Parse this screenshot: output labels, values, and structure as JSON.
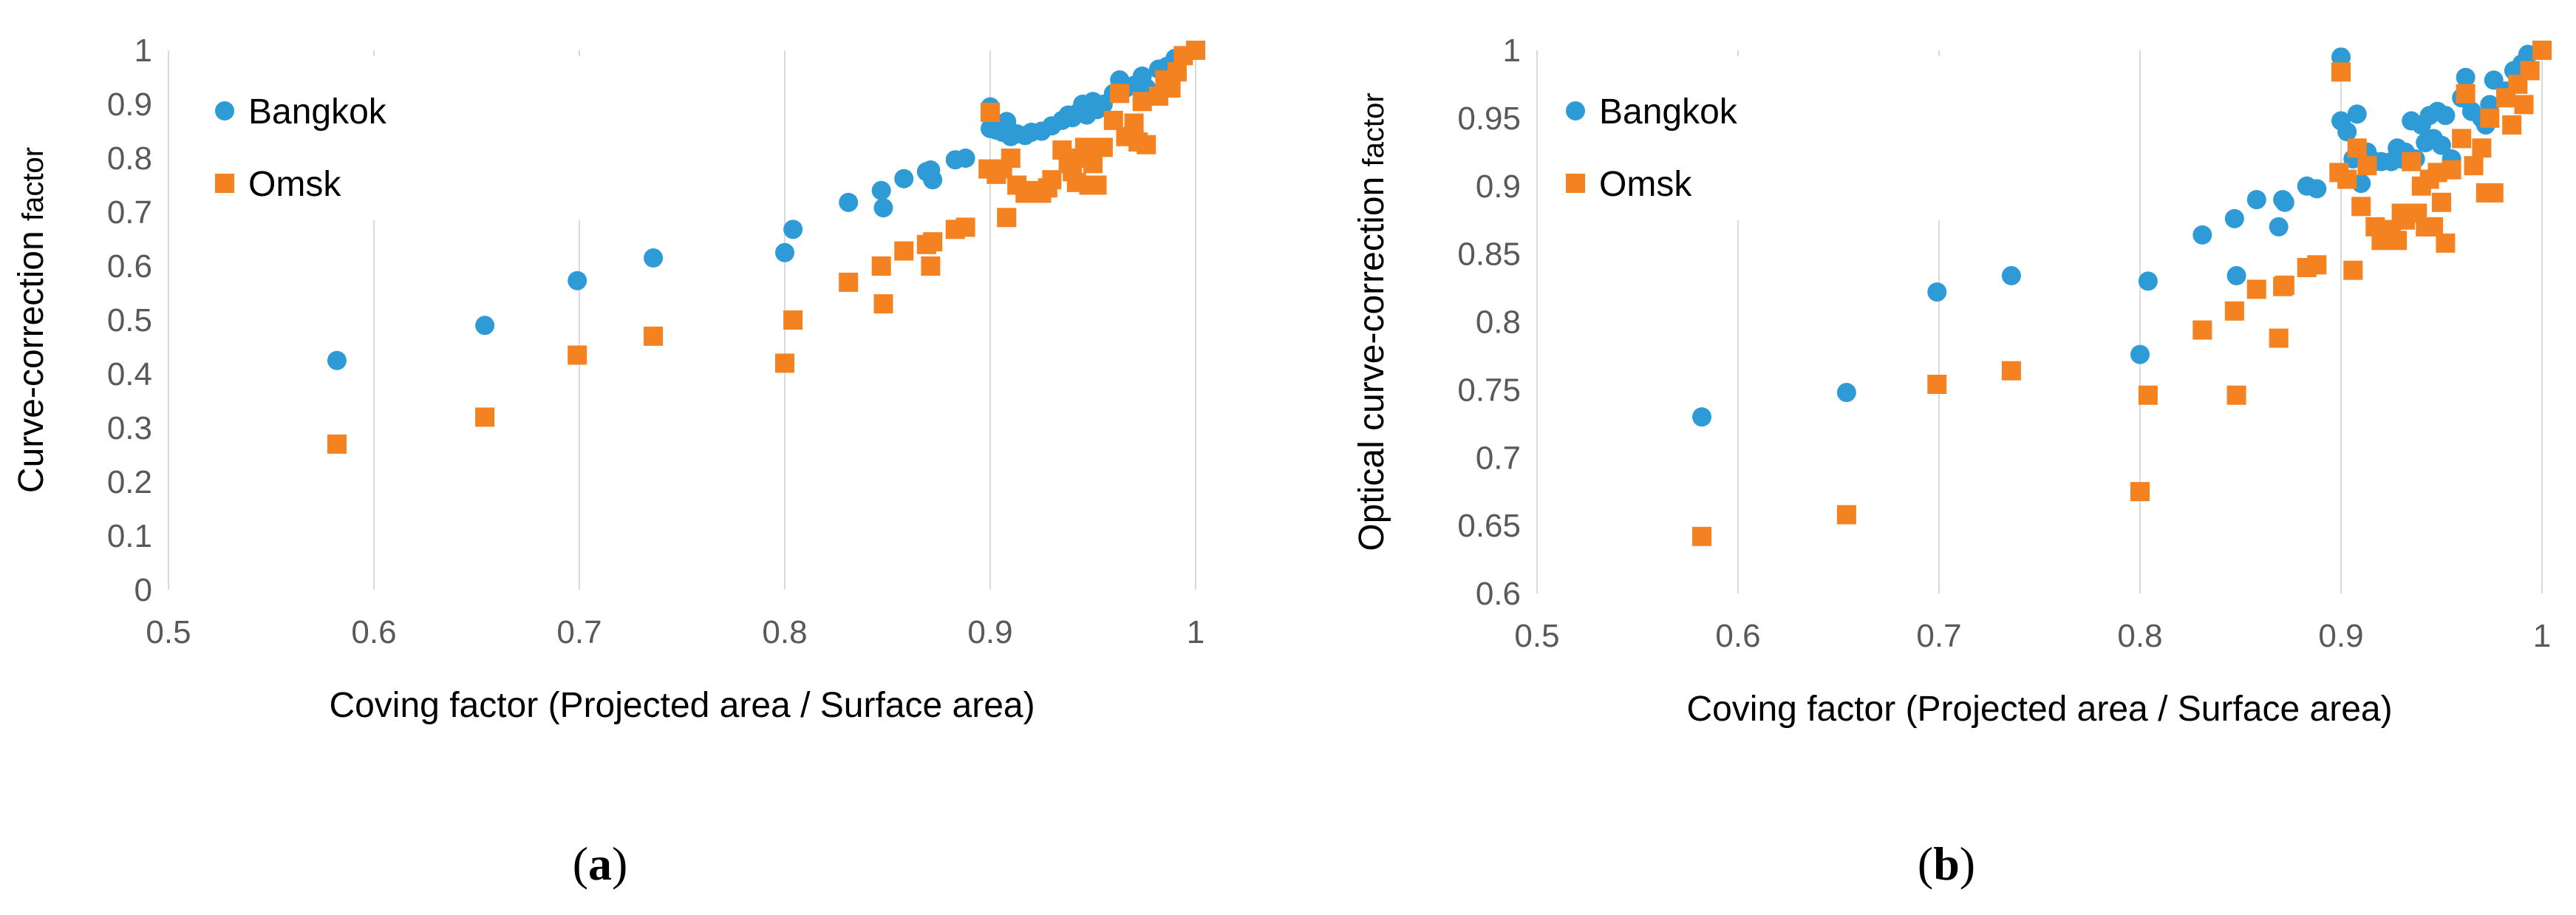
{
  "chart_data": [
    {
      "type": "scatter",
      "panel_label": {
        "open": "(",
        "letter": "a",
        "close": ")"
      },
      "title": "",
      "xlabel": "Coving factor (Projected area / Surface area)",
      "ylabel_main": "Curve-correction",
      "ylabel_small": "factor",
      "xlim": [
        0.5,
        1
      ],
      "ylim": [
        0,
        1
      ],
      "xticks": [
        0.5,
        0.6,
        0.7,
        0.8,
        0.9,
        1
      ],
      "xtick_labels": [
        "0.5",
        "0.6",
        "0.7",
        "0.8",
        "0.9",
        "1"
      ],
      "yticks": [
        0,
        0.1,
        0.2,
        0.3,
        0.4,
        0.5,
        0.6,
        0.7,
        0.8,
        0.9,
        1
      ],
      "ytick_labels": [
        "0",
        "0.1",
        "0.2",
        "0.3",
        "0.4",
        "0.5",
        "0.6",
        "0.7",
        "0.8",
        "0.9",
        "1"
      ],
      "grid": "vertical",
      "legend_position": "top-left",
      "series": [
        {
          "name": "Bangkok",
          "marker": "circle",
          "color": "#2E9BD6",
          "points": [
            [
              0.582,
              0.425
            ],
            [
              0.654,
              0.49
            ],
            [
              0.699,
              0.573
            ],
            [
              0.736,
              0.615
            ],
            [
              0.8,
              0.625
            ],
            [
              0.804,
              0.668
            ],
            [
              0.831,
              0.718
            ],
            [
              0.847,
              0.74
            ],
            [
              0.848,
              0.708
            ],
            [
              0.858,
              0.762
            ],
            [
              0.869,
              0.775
            ],
            [
              0.871,
              0.778
            ],
            [
              0.872,
              0.76
            ],
            [
              0.883,
              0.797
            ],
            [
              0.888,
              0.8
            ],
            [
              0.9,
              0.895
            ],
            [
              0.9,
              0.855
            ],
            [
              0.903,
              0.852
            ],
            [
              0.906,
              0.848
            ],
            [
              0.908,
              0.868
            ],
            [
              0.91,
              0.84
            ],
            [
              0.913,
              0.845
            ],
            [
              0.917,
              0.842
            ],
            [
              0.92,
              0.848
            ],
            [
              0.925,
              0.85
            ],
            [
              0.93,
              0.86
            ],
            [
              0.935,
              0.87
            ],
            [
              0.938,
              0.88
            ],
            [
              0.94,
              0.875
            ],
            [
              0.943,
              0.885
            ],
            [
              0.945,
              0.9
            ],
            [
              0.947,
              0.88
            ],
            [
              0.95,
              0.905
            ],
            [
              0.952,
              0.89
            ],
            [
              0.955,
              0.9
            ],
            [
              0.96,
              0.92
            ],
            [
              0.963,
              0.945
            ],
            [
              0.966,
              0.93
            ],
            [
              0.97,
              0.935
            ],
            [
              0.974,
              0.952
            ],
            [
              0.976,
              0.93
            ],
            [
              0.982,
              0.965
            ],
            [
              0.986,
              0.97
            ],
            [
              0.99,
              0.985
            ],
            [
              0.993,
              0.99
            ],
            [
              1.0,
              1.0
            ]
          ]
        },
        {
          "name": "Omsk",
          "marker": "square",
          "color": "#F58220",
          "points": [
            [
              0.582,
              0.27
            ],
            [
              0.654,
              0.32
            ],
            [
              0.699,
              0.435
            ],
            [
              0.736,
              0.47
            ],
            [
              0.8,
              0.42
            ],
            [
              0.804,
              0.5
            ],
            [
              0.831,
              0.57
            ],
            [
              0.847,
              0.6
            ],
            [
              0.848,
              0.53
            ],
            [
              0.858,
              0.628
            ],
            [
              0.869,
              0.64
            ],
            [
              0.871,
              0.6
            ],
            [
              0.872,
              0.645
            ],
            [
              0.883,
              0.668
            ],
            [
              0.888,
              0.672
            ],
            [
              0.899,
              0.78
            ],
            [
              0.9,
              0.885
            ],
            [
              0.903,
              0.77
            ],
            [
              0.906,
              0.78
            ],
            [
              0.908,
              0.69
            ],
            [
              0.91,
              0.8
            ],
            [
              0.913,
              0.75
            ],
            [
              0.917,
              0.735
            ],
            [
              0.92,
              0.74
            ],
            [
              0.925,
              0.735
            ],
            [
              0.928,
              0.745
            ],
            [
              0.93,
              0.76
            ],
            [
              0.935,
              0.815
            ],
            [
              0.938,
              0.79
            ],
            [
              0.94,
              0.775
            ],
            [
              0.942,
              0.755
            ],
            [
              0.944,
              0.8
            ],
            [
              0.946,
              0.82
            ],
            [
              0.948,
              0.75
            ],
            [
              0.95,
              0.79
            ],
            [
              0.952,
              0.75
            ],
            [
              0.955,
              0.82
            ],
            [
              0.96,
              0.87
            ],
            [
              0.963,
              0.92
            ],
            [
              0.966,
              0.84
            ],
            [
              0.97,
              0.865
            ],
            [
              0.972,
              0.83
            ],
            [
              0.974,
              0.905
            ],
            [
              0.976,
              0.825
            ],
            [
              0.982,
              0.915
            ],
            [
              0.985,
              0.945
            ],
            [
              0.988,
              0.93
            ],
            [
              0.991,
              0.96
            ],
            [
              0.994,
              0.99
            ],
            [
              1.0,
              1.0
            ]
          ]
        }
      ]
    },
    {
      "type": "scatter",
      "panel_label": {
        "open": "(",
        "letter": "b",
        "close": ")"
      },
      "title": "",
      "xlabel": "Coving factor (Projected area / Surface area)",
      "ylabel_main": "Optical curve-correction",
      "ylabel_small": "factor",
      "xlim": [
        0.5,
        1
      ],
      "ylim": [
        0.6,
        1
      ],
      "xticks": [
        0.5,
        0.6,
        0.7,
        0.8,
        0.9,
        1
      ],
      "xtick_labels": [
        "0.5",
        "0.6",
        "0.7",
        "0.8",
        "0.9",
        "1"
      ],
      "yticks": [
        0.6,
        0.65,
        0.7,
        0.75,
        0.8,
        0.85,
        0.9,
        0.95,
        1
      ],
      "ytick_labels": [
        "0.6",
        "0.65",
        "0.7",
        "0.75",
        "0.8",
        "0.85",
        "0.9",
        "0.95",
        "1"
      ],
      "grid": "vertical",
      "legend_position": "top-left",
      "series": [
        {
          "name": "Bangkok",
          "marker": "circle",
          "color": "#2E9BD6",
          "points": [
            [
              0.582,
              0.73
            ],
            [
              0.654,
              0.748
            ],
            [
              0.699,
              0.822
            ],
            [
              0.736,
              0.834
            ],
            [
              0.8,
              0.776
            ],
            [
              0.804,
              0.83
            ],
            [
              0.831,
              0.864
            ],
            [
              0.847,
              0.876
            ],
            [
              0.848,
              0.834
            ],
            [
              0.858,
              0.89
            ],
            [
              0.869,
              0.87
            ],
            [
              0.871,
              0.89
            ],
            [
              0.872,
              0.888
            ],
            [
              0.883,
              0.9
            ],
            [
              0.888,
              0.898
            ],
            [
              0.9,
              0.995
            ],
            [
              0.9,
              0.948
            ],
            [
              0.903,
              0.94
            ],
            [
              0.906,
              0.92
            ],
            [
              0.908,
              0.953
            ],
            [
              0.91,
              0.902
            ],
            [
              0.913,
              0.925
            ],
            [
              0.917,
              0.918
            ],
            [
              0.92,
              0.918
            ],
            [
              0.925,
              0.918
            ],
            [
              0.928,
              0.928
            ],
            [
              0.93,
              0.92
            ],
            [
              0.932,
              0.925
            ],
            [
              0.935,
              0.948
            ],
            [
              0.937,
              0.92
            ],
            [
              0.94,
              0.945
            ],
            [
              0.942,
              0.932
            ],
            [
              0.944,
              0.952
            ],
            [
              0.946,
              0.935
            ],
            [
              0.948,
              0.955
            ],
            [
              0.95,
              0.93
            ],
            [
              0.952,
              0.952
            ],
            [
              0.955,
              0.92
            ],
            [
              0.96,
              0.965
            ],
            [
              0.962,
              0.98
            ],
            [
              0.965,
              0.955
            ],
            [
              0.97,
              0.95
            ],
            [
              0.972,
              0.945
            ],
            [
              0.974,
              0.96
            ],
            [
              0.976,
              0.978
            ],
            [
              0.982,
              0.97
            ],
            [
              0.986,
              0.985
            ],
            [
              0.99,
              0.99
            ],
            [
              0.993,
              0.997
            ],
            [
              1.0,
              1.0
            ]
          ]
        },
        {
          "name": "Omsk",
          "marker": "square",
          "color": "#F58220",
          "points": [
            [
              0.582,
              0.642
            ],
            [
              0.654,
              0.658
            ],
            [
              0.699,
              0.754
            ],
            [
              0.736,
              0.764
            ],
            [
              0.8,
              0.675
            ],
            [
              0.804,
              0.746
            ],
            [
              0.831,
              0.794
            ],
            [
              0.847,
              0.808
            ],
            [
              0.848,
              0.746
            ],
            [
              0.858,
              0.824
            ],
            [
              0.869,
              0.788
            ],
            [
              0.871,
              0.826
            ],
            [
              0.872,
              0.827
            ],
            [
              0.883,
              0.84
            ],
            [
              0.888,
              0.842
            ],
            [
              0.899,
              0.91
            ],
            [
              0.9,
              0.984
            ],
            [
              0.903,
              0.905
            ],
            [
              0.906,
              0.838
            ],
            [
              0.908,
              0.928
            ],
            [
              0.91,
              0.885
            ],
            [
              0.913,
              0.915
            ],
            [
              0.917,
              0.87
            ],
            [
              0.92,
              0.86
            ],
            [
              0.923,
              0.862
            ],
            [
              0.925,
              0.868
            ],
            [
              0.928,
              0.86
            ],
            [
              0.93,
              0.88
            ],
            [
              0.932,
              0.875
            ],
            [
              0.935,
              0.918
            ],
            [
              0.938,
              0.88
            ],
            [
              0.94,
              0.9
            ],
            [
              0.942,
              0.87
            ],
            [
              0.944,
              0.905
            ],
            [
              0.946,
              0.87
            ],
            [
              0.948,
              0.91
            ],
            [
              0.95,
              0.888
            ],
            [
              0.952,
              0.858
            ],
            [
              0.955,
              0.912
            ],
            [
              0.96,
              0.935
            ],
            [
              0.962,
              0.968
            ],
            [
              0.966,
              0.915
            ],
            [
              0.97,
              0.928
            ],
            [
              0.972,
              0.895
            ],
            [
              0.974,
              0.95
            ],
            [
              0.976,
              0.895
            ],
            [
              0.982,
              0.965
            ],
            [
              0.985,
              0.945
            ],
            [
              0.988,
              0.975
            ],
            [
              0.991,
              0.96
            ],
            [
              0.994,
              0.985
            ],
            [
              1.0,
              1.0
            ]
          ]
        }
      ]
    }
  ]
}
